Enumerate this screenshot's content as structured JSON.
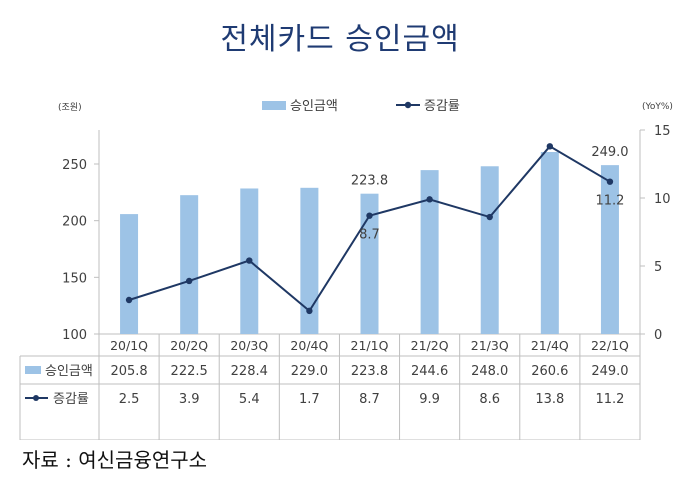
{
  "title": "전체카드 승인금액",
  "source": "자료 : 여신금융연구소",
  "chart_data": {
    "type": "bar",
    "categories": [
      "20/1Q",
      "20/2Q",
      "20/3Q",
      "20/4Q",
      "21/1Q",
      "21/2Q",
      "21/3Q",
      "21/4Q",
      "22/1Q"
    ],
    "left_unit": "(조원)",
    "right_unit": "(YoY%)",
    "ylim": [
      100,
      280
    ],
    "y_ticks": [
      100,
      150,
      200,
      250
    ],
    "y2lim": [
      0,
      15
    ],
    "y2_ticks": [
      0,
      5,
      10,
      15
    ],
    "legend_position": "top",
    "grid": false,
    "series": [
      {
        "name": "승인금액",
        "type": "bar",
        "axis": "left",
        "color": "#9dc3e6",
        "values": [
          205.8,
          222.5,
          228.4,
          229.0,
          223.8,
          244.6,
          248.0,
          260.6,
          249.0
        ],
        "value_labels": [
          "205.8",
          "222.5",
          "228.4",
          "229.0",
          "223.8",
          "244.6",
          "248.0",
          "260.6",
          "249.0"
        ]
      },
      {
        "name": "증감률",
        "type": "line",
        "axis": "right",
        "color": "#1f3864",
        "values": [
          2.5,
          3.9,
          5.4,
          1.7,
          8.7,
          9.9,
          8.6,
          13.8,
          11.2
        ],
        "value_labels": [
          "2.5",
          "3.9",
          "5.4",
          "1.7",
          "8.7",
          "9.9",
          "8.6",
          "13.8",
          "11.2"
        ]
      }
    ],
    "annotations": [
      {
        "category": "21/1Q",
        "series": 0,
        "text": "223.8"
      },
      {
        "category": "21/1Q",
        "series": 1,
        "text": "8.7"
      },
      {
        "category": "22/1Q",
        "series": 0,
        "text": "249.0"
      },
      {
        "category": "22/1Q",
        "series": 1,
        "text": "11.2"
      }
    ]
  }
}
